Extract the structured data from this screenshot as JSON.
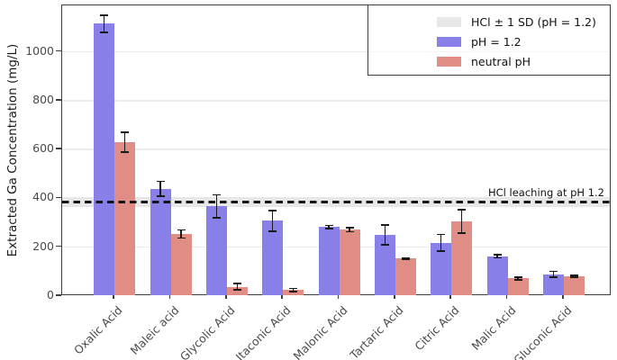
{
  "chart_data": {
    "type": "bar",
    "title": "",
    "xlabel": "",
    "ylabel": "Extracted Ga Concentration (mg/L)",
    "ylim": [
      0,
      1190
    ],
    "yticks": [
      0,
      200,
      400,
      600,
      800,
      1000
    ],
    "grid": "horizontal-light",
    "legend_position": "upper right",
    "categories": [
      "Oxalic Acid",
      "Maleic acid",
      "Glycolic Acid",
      "Itaconic Acid",
      "Malonic Acid",
      "Tartaric Acid",
      "Citric Acid",
      "Malic Acid",
      "Gluconic Acid"
    ],
    "series": [
      {
        "name": "pH = 1.2",
        "color": "#8880e8",
        "values": [
          1115,
          440,
          368,
          308,
          283,
          250,
          218,
          163,
          90
        ],
        "errors": [
          38,
          33,
          50,
          45,
          9,
          44,
          38,
          10,
          15
        ]
      },
      {
        "name": "neutral pH",
        "color": "#e08d85",
        "values": [
          630,
          254,
          38,
          25,
          271,
          153,
          307,
          72,
          81
        ],
        "errors": [
          44,
          20,
          16,
          10,
          11,
          6,
          51,
          8,
          6
        ]
      }
    ],
    "reference_band": {
      "label": "HCl ± 1 SD (pH = 1.2)",
      "color": "#e7e7e7",
      "low": 365,
      "high": 405
    },
    "reference_line": {
      "label": "HCl leaching at pH 1.2",
      "value": 385,
      "style": "dashed",
      "color": "#141414"
    },
    "legend": {
      "entries": [
        {
          "label": "HCl ± 1 SD (pH = 1.2)",
          "swatch_color": "#e7e7e7"
        },
        {
          "label": "pH = 1.2",
          "swatch_color": "#8880e8"
        },
        {
          "label": "neutral pH",
          "swatch_color": "#e08d85"
        }
      ]
    }
  }
}
